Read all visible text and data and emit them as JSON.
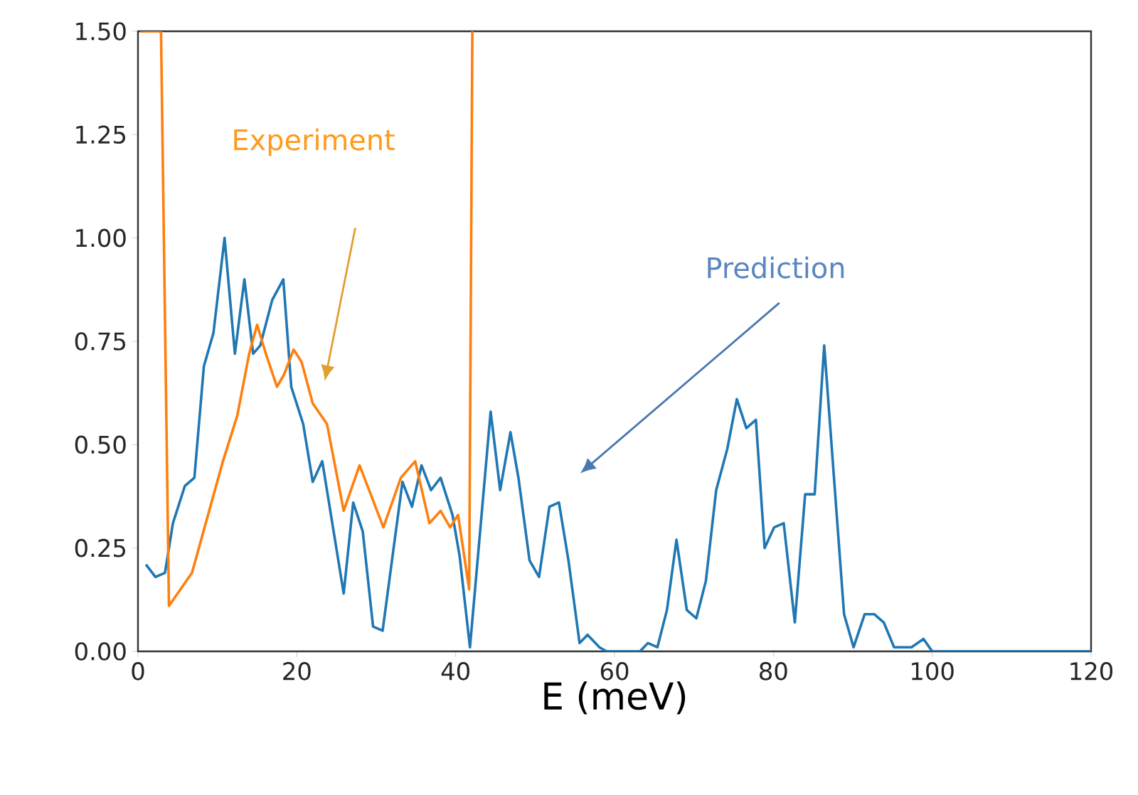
{
  "chart_data": {
    "type": "line",
    "xlabel": "E (meV)",
    "xlim": [
      0,
      120
    ],
    "ylim": [
      0,
      1.5
    ],
    "xticks": [
      0,
      20,
      40,
      60,
      80,
      100,
      120
    ],
    "yticks": [
      {
        "value": 0,
        "label": "0.00"
      },
      {
        "value": 0.25,
        "label": "0.25"
      },
      {
        "value": 0.5,
        "label": "0.50"
      },
      {
        "value": 0.75,
        "label": "0.75"
      },
      {
        "value": 1.0,
        "label": "1.00"
      },
      {
        "value": 1.25,
        "label": "1.25"
      },
      {
        "value": 1.5,
        "label": "1.50"
      }
    ],
    "grid": false,
    "marker": "none",
    "line_style": "solid",
    "series": [
      {
        "color": "#1f77b4",
        "x": [
          1.0,
          2.2,
          3.4,
          4.4,
          5.9,
          7.1,
          8.3,
          9.5,
          10.9,
          12.2,
          13.4,
          14.5,
          15.4,
          16.9,
          18.3,
          19.3,
          20.8,
          22.0,
          23.2,
          25.9,
          27.1,
          28.3,
          29.6,
          30.8,
          33.3,
          34.5,
          35.7,
          36.9,
          38.1,
          39.6,
          40.5,
          41.8,
          44.4,
          45.6,
          46.9,
          47.9,
          49.3,
          50.5,
          51.8,
          53.0,
          54.2,
          55.6,
          56.6,
          58.1,
          59.0,
          63.2,
          64.2,
          65.4,
          66.6,
          67.8,
          69.1,
          70.3,
          71.5,
          72.8,
          74.2,
          75.4,
          76.6,
          77.8,
          78.9,
          80.1,
          81.3,
          82.7,
          84.0,
          85.2,
          86.4,
          88.9,
          90.1,
          91.5,
          92.7,
          93.9,
          95.2,
          97.4,
          98.9,
          100.0,
          120.0
        ],
        "values": [
          0.21,
          0.18,
          0.19,
          0.31,
          0.4,
          0.42,
          0.69,
          0.77,
          1.0,
          0.72,
          0.9,
          0.72,
          0.74,
          0.85,
          0.9,
          0.64,
          0.55,
          0.41,
          0.46,
          0.14,
          0.36,
          0.29,
          0.06,
          0.05,
          0.41,
          0.35,
          0.45,
          0.39,
          0.42,
          0.33,
          0.23,
          0.01,
          0.58,
          0.39,
          0.53,
          0.42,
          0.22,
          0.18,
          0.35,
          0.36,
          0.22,
          0.02,
          0.04,
          0.01,
          0.0,
          0.0,
          0.02,
          0.01,
          0.1,
          0.27,
          0.1,
          0.08,
          0.17,
          0.39,
          0.49,
          0.61,
          0.54,
          0.56,
          0.25,
          0.3,
          0.31,
          0.07,
          0.38,
          0.38,
          0.74,
          0.09,
          0.01,
          0.09,
          0.09,
          0.07,
          0.01,
          0.01,
          0.03,
          0.0,
          0.0
        ]
      },
      {
        "color": "#ff7f0e",
        "x": [
          0.3,
          2.9,
          3.9,
          6.8,
          10.7,
          12.5,
          14.0,
          15.0,
          16.1,
          17.5,
          18.4,
          19.6,
          20.6,
          22.0,
          23.8,
          25.9,
          27.9,
          30.9,
          33.1,
          34.9,
          36.7,
          38.1,
          39.3,
          40.3,
          41.7,
          42.1
        ],
        "values": [
          1.5,
          1.5,
          0.11,
          0.19,
          0.46,
          0.57,
          0.72,
          0.79,
          0.72,
          0.64,
          0.67,
          0.73,
          0.7,
          0.6,
          0.55,
          0.34,
          0.45,
          0.3,
          0.42,
          0.46,
          0.31,
          0.34,
          0.3,
          0.33,
          0.15,
          1.5
        ]
      }
    ],
    "annotations": [
      "Prediction",
      "Experiment"
    ]
  }
}
